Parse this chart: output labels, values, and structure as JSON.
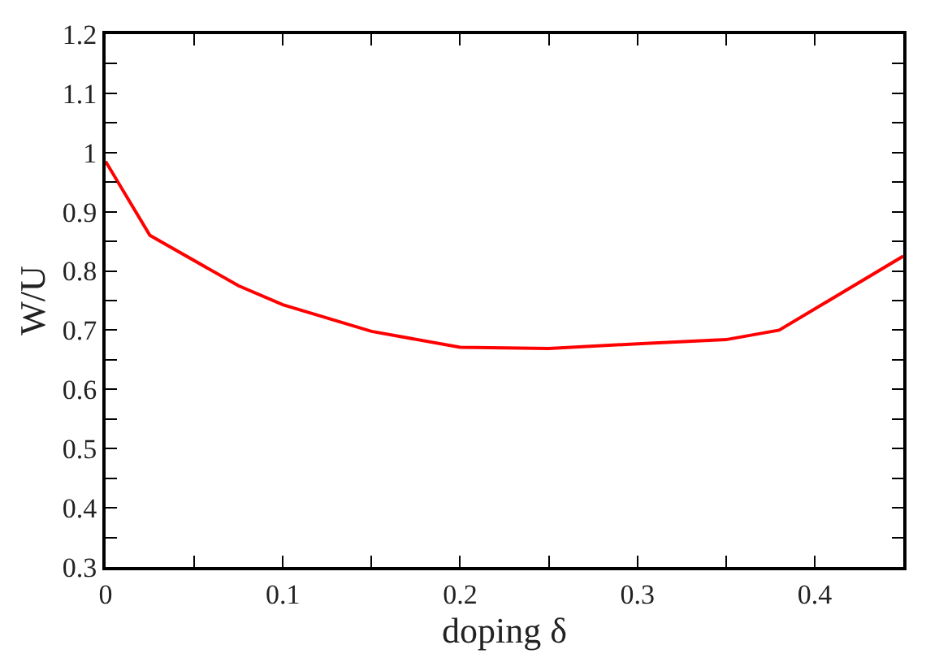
{
  "chart_data": {
    "type": "line",
    "xlabel": "doping δ",
    "ylabel": "W/U",
    "x": [
      0,
      0.025,
      0.075,
      0.1,
      0.15,
      0.2,
      0.25,
      0.3,
      0.35,
      0.38,
      0.45
    ],
    "series": [
      {
        "color": "#ff0000",
        "values": [
          0.985,
          0.86,
          0.775,
          0.743,
          0.698,
          0.671,
          0.669,
          0.677,
          0.684,
          0.7,
          0.825
        ]
      }
    ],
    "xlim": [
      0,
      0.45
    ],
    "ylim": [
      0.3,
      1.2
    ],
    "xticks": [
      0,
      {
        "value": 0.05,
        "label": null
      },
      0.1,
      {
        "value": 0.15,
        "label": null
      },
      0.2,
      {
        "value": 0.25,
        "label": null
      },
      0.3,
      {
        "value": 0.35,
        "label": null
      },
      0.4
    ],
    "yticks": [
      0.3,
      {
        "value": 0.35,
        "label": null
      },
      0.4,
      {
        "value": 0.45,
        "label": null
      },
      0.5,
      {
        "value": 0.55,
        "label": null
      },
      0.6,
      {
        "value": 0.65,
        "label": null
      },
      0.7,
      {
        "value": 0.75,
        "label": null
      },
      0.8,
      {
        "value": 0.85,
        "label": null
      },
      0.9,
      {
        "value": 0.95,
        "label": null
      },
      1,
      {
        "value": 1.05,
        "label": null
      },
      1.1,
      {
        "value": 1.15,
        "label": null
      },
      1.2
    ],
    "marker": "none",
    "line_style": "solid"
  }
}
